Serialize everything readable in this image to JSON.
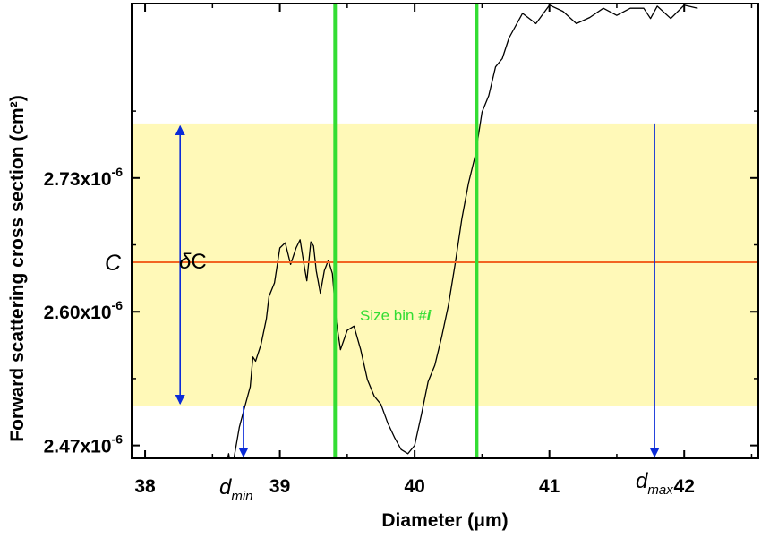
{
  "chart_data": {
    "type": "line",
    "xlabel": "Diameter (μm)",
    "ylabel": "Forward scattering cross section (cm²)",
    "xlim": [
      37.9,
      42.55
    ],
    "ylim": [
      2.4575e-06,
      2.8995e-06
    ],
    "x_ticks": [
      {
        "value": 38,
        "label": "38"
      },
      {
        "value": 39,
        "label": "39"
      },
      {
        "value": 40,
        "label": "40"
      },
      {
        "value": 41,
        "label": "41"
      },
      {
        "value": 42,
        "label": "42"
      }
    ],
    "y_ticks": [
      {
        "value": 2.47e-06,
        "mantissa": "2.47x10",
        "exp": "-6"
      },
      {
        "value": 2.6e-06,
        "mantissa": "2.60x10",
        "exp": "-6"
      },
      {
        "value": 2.73e-06,
        "mantissa": "2.73x10",
        "exp": "-6"
      }
    ],
    "grid": false,
    "series": [
      {
        "color": "#000000",
        "x": [
          38.6,
          38.62,
          38.64,
          38.66,
          38.7,
          38.74,
          38.78,
          38.8,
          38.82,
          38.86,
          38.9,
          38.92,
          38.96,
          39.0,
          39.04,
          39.08,
          39.12,
          39.15,
          39.18,
          39.2,
          39.23,
          39.25,
          39.27,
          39.3,
          39.33,
          39.36,
          39.39,
          39.42,
          39.45,
          39.5,
          39.55,
          39.6,
          39.65,
          39.7,
          39.75,
          39.8,
          39.85,
          39.9,
          39.95,
          40.0,
          40.05,
          40.1,
          40.15,
          40.2,
          40.25,
          40.3,
          40.35,
          40.4,
          40.45,
          40.5,
          40.55,
          40.6,
          40.65,
          40.7,
          40.8,
          40.9,
          41.0,
          41.1,
          41.2,
          41.3,
          41.4,
          41.5,
          41.6,
          41.7,
          41.75,
          41.8,
          41.9,
          42.0,
          42.1
        ],
        "y": [
          2.451e-06,
          2.462e-06,
          2.449e-06,
          2.458e-06,
          2.488e-06,
          2.508e-06,
          2.527e-06,
          2.556e-06,
          2.552e-06,
          2.568e-06,
          2.593e-06,
          2.615e-06,
          2.628e-06,
          2.662e-06,
          2.667e-06,
          2.646e-06,
          2.662e-06,
          2.67e-06,
          2.645e-06,
          2.63e-06,
          2.668e-06,
          2.664e-06,
          2.64e-06,
          2.618e-06,
          2.64e-06,
          2.65e-06,
          2.637e-06,
          2.59e-06,
          2.563e-06,
          2.582e-06,
          2.586e-06,
          2.563e-06,
          2.534e-06,
          2.518e-06,
          2.51e-06,
          2.492e-06,
          2.478e-06,
          2.466e-06,
          2.462e-06,
          2.47e-06,
          2.5e-06,
          2.532e-06,
          2.548e-06,
          2.575e-06,
          2.606e-06,
          2.646e-06,
          2.69e-06,
          2.725e-06,
          2.752e-06,
          2.794e-06,
          2.81e-06,
          2.838e-06,
          2.846e-06,
          2.866e-06,
          2.89e-06,
          2.88e-06,
          2.898e-06,
          2.892e-06,
          2.88e-06,
          2.886e-06,
          2.895e-06,
          2.888e-06,
          2.895e-06,
          2.895e-06,
          2.885e-06,
          2.897e-06,
          2.885e-06,
          2.898e-06,
          2.895e-06
        ]
      }
    ],
    "band": {
      "y_min": 2.508e-06,
      "y_max": 2.783e-06,
      "color": "#fff9b8"
    },
    "c_line": {
      "value": 2.648e-06,
      "color": "#f26522",
      "label": "C"
    },
    "size_bin": {
      "x_left": 39.41,
      "x_right": 40.46,
      "color": "#33dd33",
      "label_main": "Size bin #",
      "label_var": "i"
    },
    "delta_c": {
      "label_sym": "δ",
      "label_rest": "C",
      "x": 38.26,
      "color": "#0a2bd8"
    },
    "d_min": {
      "x": 38.73,
      "label_main": "d",
      "label_sub": "min"
    },
    "d_max": {
      "x": 41.78,
      "label_main": "d",
      "label_sub": "max"
    }
  }
}
